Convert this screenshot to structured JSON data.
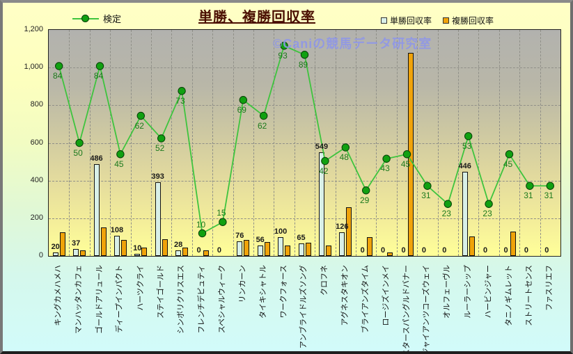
{
  "chart_data": {
    "type": "bar",
    "title": "単勝、複勝回収率",
    "watermark": "©Caniの競馬データ研究室",
    "categories": [
      "キングカメハメハ",
      "マンハッタンカフェ",
      "ゴールドアリュール",
      "ディープインパクト",
      "ハーツクライ",
      "ステイゴールド",
      "シンボリクリスエス",
      "フレンチデピュティ",
      "スペシャルウィーク",
      "リンカーン",
      "タイキシャトル",
      "ワークフォース",
      "アンブライドルズソング",
      "クロフネ",
      "アグネスタキオン",
      "ブライアンズタイム",
      "ロージズインメイ",
      "スタースパングルドバナー",
      "ジャイアンツコーズウェイ",
      "オルフェーヴル",
      "ルーラーシップ",
      "ハービンジャー",
      "タニノギムレット",
      "ストリートセンス",
      "ファスリエフ"
    ],
    "series": [
      {
        "name": "検定",
        "type": "line",
        "axis": "secondary",
        "color": "#3ec43e",
        "marker_color": "#11a011",
        "values": [
          84,
          50,
          84,
          45,
          62,
          52,
          73,
          10,
          15,
          69,
          62,
          93,
          89,
          42,
          48,
          29,
          43,
          45,
          31,
          23,
          53,
          23,
          45,
          31,
          31
        ],
        "show_labels": true
      },
      {
        "name": "単勝回収率",
        "type": "bar",
        "color": "#d9f0e8",
        "values": [
          20,
          37,
          486,
          108,
          10,
          393,
          28,
          0,
          0,
          76,
          56,
          100,
          65,
          549,
          126,
          0,
          0,
          0,
          0,
          0,
          446,
          0,
          0,
          0,
          0
        ],
        "show_labels": true
      },
      {
        "name": "複勝回収率",
        "type": "bar",
        "color": "#f0a30a",
        "values": [
          125,
          30,
          150,
          85,
          45,
          90,
          45,
          30,
          0,
          85,
          75,
          55,
          70,
          55,
          260,
          100,
          20,
          1080,
          0,
          0,
          105,
          0,
          130,
          0,
          0
        ],
        "show_labels": false
      }
    ],
    "y_axis": {
      "min": 0,
      "max": 1200,
      "step": 200,
      "ticks": [
        "0",
        "200",
        "400",
        "600",
        "800",
        "1,000",
        "1,200"
      ]
    },
    "secondary_axis": {
      "min": 0,
      "max": 100,
      "visible": false
    },
    "grid": true,
    "legend_position": "top"
  }
}
